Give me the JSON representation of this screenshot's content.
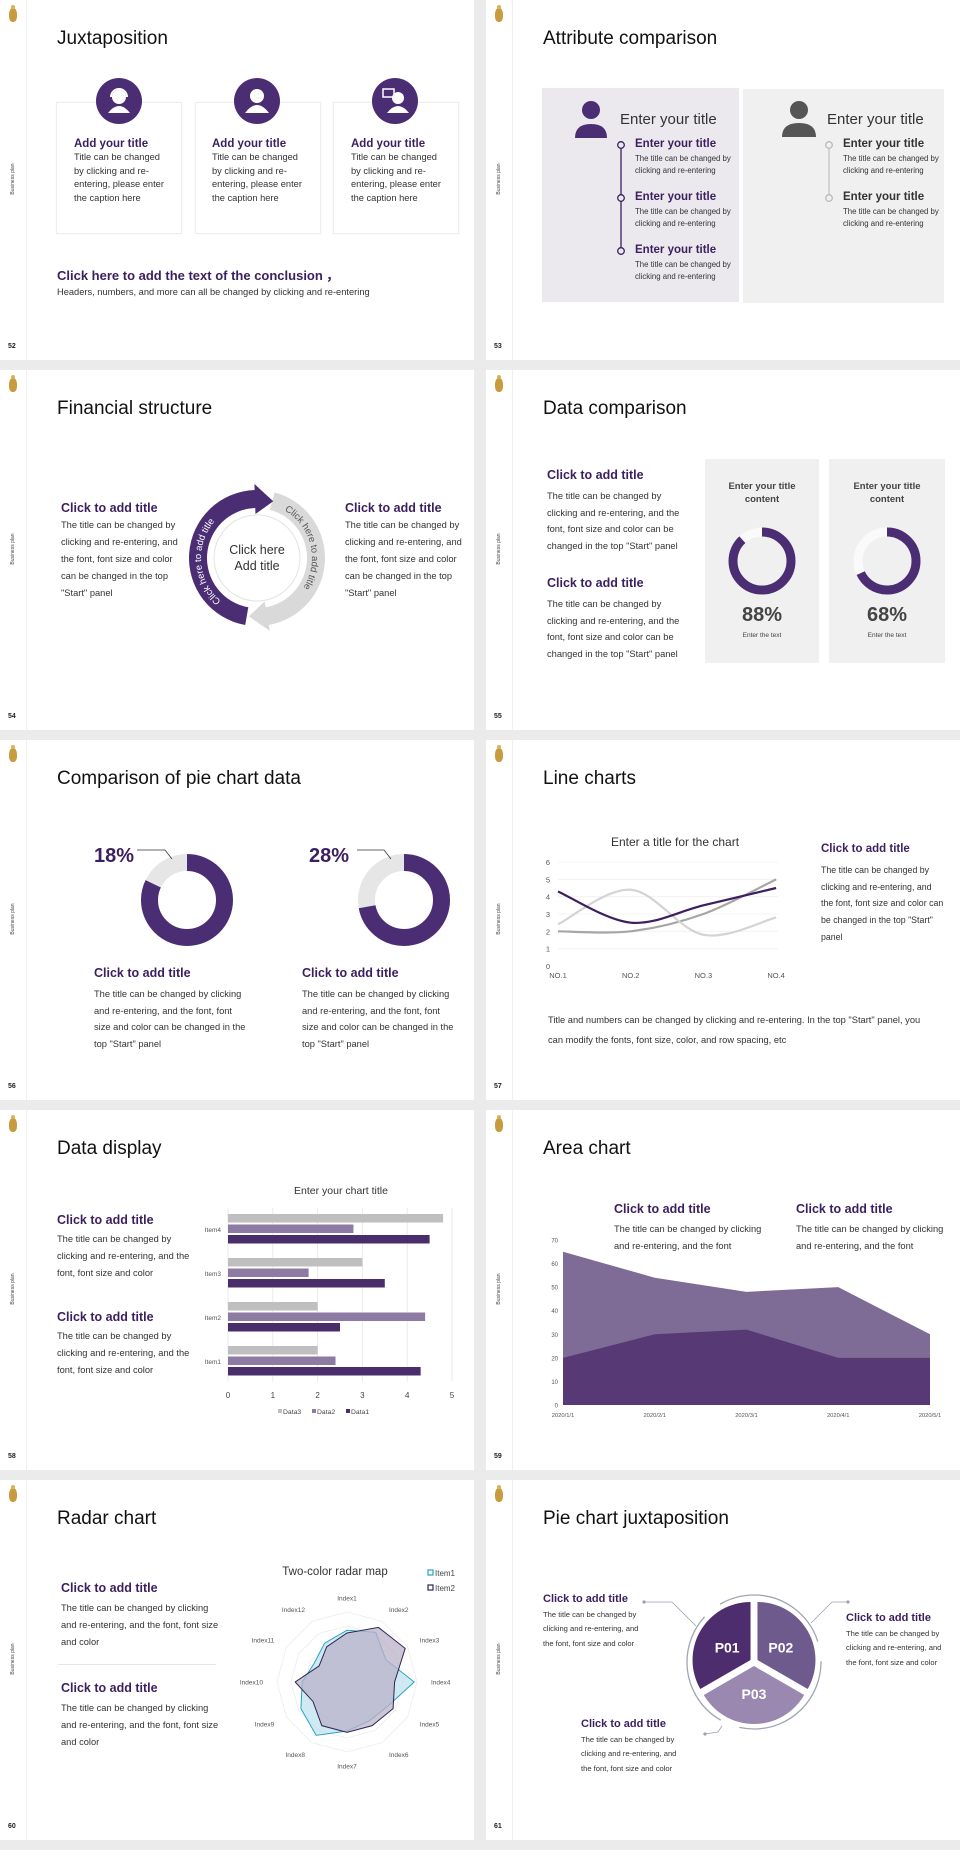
{
  "common": {
    "side_label": "Business plan",
    "logo": "gold-emblem"
  },
  "colors": {
    "purple": "#4b2d73",
    "heading": "#3b1f5e",
    "light_gray": "#d9d9d9",
    "panel_purple": "#ebe8ee",
    "panel_gray": "#f0f0f0"
  },
  "slides": [
    {
      "page": "52",
      "title": "Juxtaposition",
      "cards": [
        {
          "icon": "headset-person-icon",
          "title": "Add your title",
          "body": "Title can be changed by clicking and re-entering, please enter the caption here"
        },
        {
          "icon": "person-icon",
          "title": "Add your title",
          "body": "Title can be changed by clicking and re-entering, please enter the caption here"
        },
        {
          "icon": "person-chat-icon",
          "title": "Add your title",
          "body": "Title can be changed by clicking and re-entering, please enter the caption here"
        }
      ],
      "conclusion_title": "Click here to add the text of the conclusion ，",
      "conclusion_body": "Headers, numbers, and more can all be changed by clicking and re-entering"
    },
    {
      "page": "53",
      "title": "Attribute comparison",
      "panels": [
        {
          "heading": "Enter your title",
          "items": [
            {
              "title": "Enter your title",
              "body": "The title can be changed by clicking and re-entering"
            },
            {
              "title": "Enter your title",
              "body": "The title can be changed by clicking and re-entering"
            },
            {
              "title": "Enter your title",
              "body": "The title can be changed by clicking and re-entering"
            }
          ]
        },
        {
          "heading": "Enter your title",
          "items": [
            {
              "title": "Enter your title",
              "body": "The title can be changed by clicking and re-entering"
            },
            {
              "title": "Enter your title",
              "body": "The title can be changed by clicking and re-entering"
            }
          ]
        }
      ]
    },
    {
      "page": "54",
      "title": "Financial structure",
      "left": {
        "title": "Click to add title",
        "body": "The title can be changed by clicking and re-entering, and the font, font size and color can be changed in the top \"Start\" panel"
      },
      "right": {
        "title": "Click to add title",
        "body": "The title can be changed by clicking and re-entering, and the font, font size and color can be changed in the top \"Start\" panel"
      },
      "arrow_left": "Click here to add title",
      "arrow_right": "Click here to add title",
      "center_line1": "Click here",
      "center_line2": "Add title"
    },
    {
      "page": "55",
      "title": "Data comparison",
      "blocks": [
        {
          "title": "Click to add title",
          "body": "The title can be changed by clicking and re-entering, and the font, font size and color can be changed in the top \"Start\" panel"
        },
        {
          "title": "Click to add title",
          "body": "The title can be changed by clicking and re-entering, and the font, font size and color can be changed in the top \"Start\" panel"
        }
      ],
      "panels": [
        {
          "title": "Enter your title content",
          "value_label": "88%",
          "value": 88,
          "caption": "Enter the text"
        },
        {
          "title": "Enter your title content",
          "value_label": "68%",
          "value": 68,
          "caption": "Enter the text"
        }
      ]
    },
    {
      "page": "56",
      "title": "Comparison of pie chart data",
      "donuts": [
        {
          "label": "18%",
          "value": 18,
          "title": "Click to add title",
          "body": "The title can be changed by clicking and re-entering, and the font, font size and color can be changed in the top \"Start\" panel"
        },
        {
          "label": "28%",
          "value": 28,
          "title": "Click to add title",
          "body": "The title can be changed by clicking and re-entering, and the font, font size and color can be changed in the top \"Start\" panel"
        }
      ]
    },
    {
      "page": "57",
      "title": "Line charts",
      "right": {
        "title": "Click to add title",
        "body": "The title can be changed by clicking and re-entering, and the font, font size and color can be changed in the top \"Start\" panel"
      },
      "footer": "Title and numbers can be changed by clicking and re-entering. In the top \"Start\" panel, you can modify the fonts, font size, color, and row spacing, etc"
    },
    {
      "page": "58",
      "title": "Data display",
      "blocks": [
        {
          "title": "Click to add title",
          "body": "The title can be changed by clicking and re-entering, and the font, font size and color"
        },
        {
          "title": "Click to add title",
          "body": "The title can be changed by clicking and re-entering, and the font, font size and color"
        }
      ]
    },
    {
      "page": "59",
      "title": "Area chart",
      "blocks": [
        {
          "title": "Click to add title",
          "body": "The title can be changed by clicking and re-entering, and the font"
        },
        {
          "title": "Click to add title",
          "body": "The title can be changed by clicking and re-entering, and the font"
        }
      ]
    },
    {
      "page": "60",
      "title": "Radar chart",
      "blocks": [
        {
          "title": "Click to add title",
          "body": "The title can be changed by clicking and re-entering, and the font, font size and color"
        },
        {
          "title": "Click to add title",
          "body": "The title can be changed by clicking and re-entering, and the font, font size and color"
        }
      ]
    },
    {
      "page": "61",
      "title": "Pie chart juxtaposition",
      "segments": [
        "P01",
        "P02",
        "P03"
      ],
      "segment_colors": [
        "#4e2d6e",
        "#6f5a8e",
        "#9a88b0"
      ],
      "blocks": [
        {
          "title": "Click to add title",
          "body": "The title can be changed by clicking and re-entering, and the font, font size and color"
        },
        {
          "title": "Click to add title",
          "body": "The title can be changed by clicking and re-entering, and the font, font size and color"
        },
        {
          "title": "Click to add title",
          "body": "The title can be changed by clicking and re-entering, and the font, font size and color"
        }
      ]
    }
  ],
  "chart_data": [
    {
      "type": "line",
      "title": "Enter a title for the chart",
      "categories": [
        "NO.1",
        "NO.2",
        "NO.3",
        "NO.4"
      ],
      "ylim": [
        0,
        6
      ],
      "yticks": [
        0,
        1,
        2,
        3,
        4,
        5,
        6
      ],
      "grid": true,
      "smooth": true,
      "series": [
        {
          "values": [
            4.3,
            2.5,
            3.5,
            4.5
          ],
          "color": "#3b1f5e"
        },
        {
          "values": [
            2.4,
            4.4,
            1.8,
            2.8
          ],
          "color": "#d4d4d4"
        },
        {
          "values": [
            2.0,
            2.0,
            3.0,
            5.0
          ],
          "color": "#a6a6a6"
        }
      ]
    },
    {
      "type": "bar",
      "orientation": "horizontal",
      "title": "Enter your chart title",
      "categories": [
        "Item1",
        "Item2",
        "Item3",
        "Item4"
      ],
      "xlim": [
        0,
        5
      ],
      "xticks": [
        0,
        1,
        2,
        3,
        4,
        5
      ],
      "grid": true,
      "legend": "bottom",
      "series": [
        {
          "name": "Data1",
          "values": [
            4.3,
            2.5,
            3.5,
            4.5
          ],
          "color": "#4a2e6c"
        },
        {
          "name": "Data2",
          "values": [
            2.4,
            4.4,
            1.8,
            2.8
          ],
          "color": "#8d7ba3"
        },
        {
          "name": "Data3",
          "values": [
            2,
            2,
            3,
            4.8
          ],
          "color": "#bfbfbf"
        }
      ],
      "legend_order": [
        "Data3",
        "Data2",
        "Data1"
      ]
    },
    {
      "type": "area",
      "categories": [
        "2020/1/1",
        "2020/2/1",
        "2020/3/1",
        "2020/4/1",
        "2020/5/1"
      ],
      "ylim": [
        0,
        70
      ],
      "yticks": [
        0,
        10,
        20,
        30,
        40,
        50,
        60,
        70
      ],
      "grid": false,
      "series": [
        {
          "values": [
            65,
            54,
            48,
            50,
            30
          ],
          "color": "#7e6b96"
        },
        {
          "values": [
            20,
            30,
            32,
            20,
            20
          ],
          "color": "#573a75"
        }
      ]
    },
    {
      "type": "radar",
      "title": "Two-color radar map",
      "legend": "top-right",
      "categories": [
        "Index1",
        "Index2",
        "Index3",
        "Index4",
        "Index5",
        "Index6",
        "Index7",
        "Index8",
        "Index9",
        "Index10",
        "Index11",
        "Index12"
      ],
      "rmax": 5,
      "series": [
        {
          "name": "Item1",
          "values": [
            3.7,
            4.1,
            3.2,
            4.8,
            3.4,
            3.2,
            3.5,
            4.4,
            3.8,
            3.2,
            2.7,
            3.2
          ],
          "color": "#27a3c4",
          "fill": "#bfe3ef"
        },
        {
          "name": "Item2",
          "values": [
            3.5,
            4.5,
            4.8,
            3.4,
            3.8,
            3.6,
            3.6,
            3.6,
            2.8,
            3.7,
            2.3,
            2.9
          ],
          "color": "#2e2450",
          "fill": "#b9b2c8"
        }
      ]
    }
  ]
}
